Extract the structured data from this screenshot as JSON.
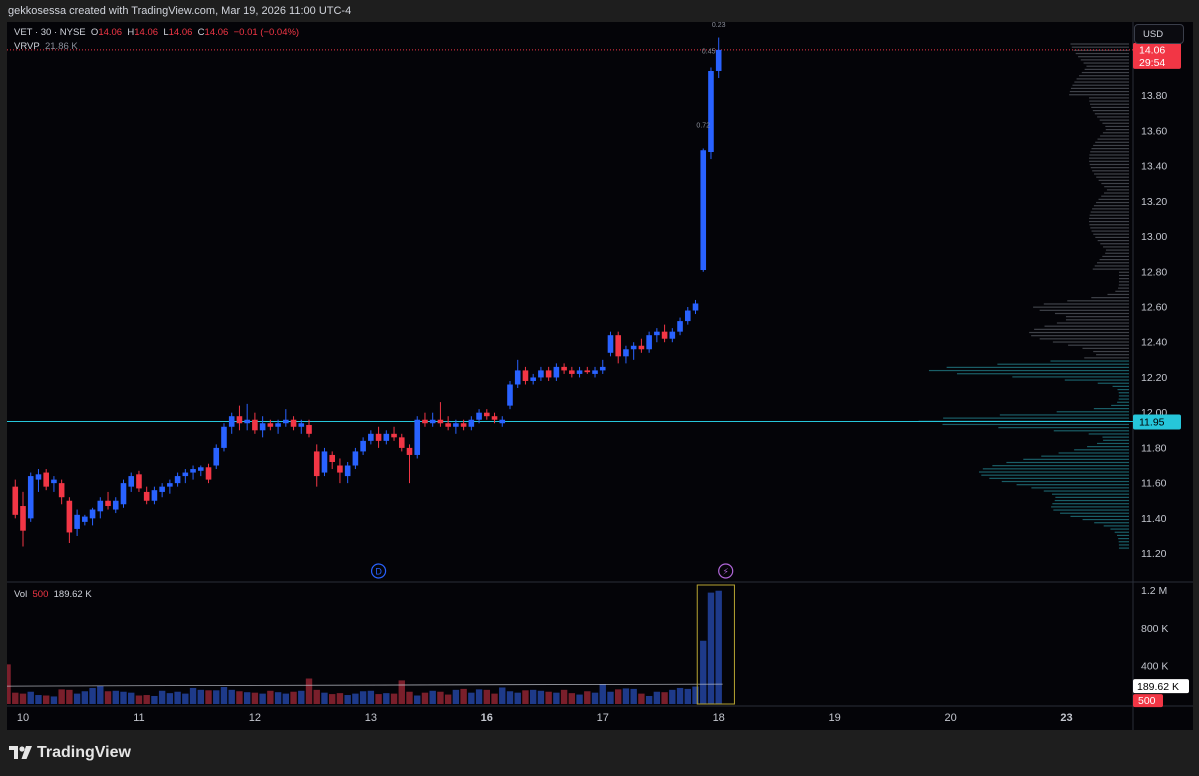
{
  "caption": "gekkosessa created with TradingView.com, Mar 19, 2026 11:00 UTC-4",
  "legend": {
    "symbol": "VET · 30 · NYSE",
    "open_label": "O",
    "open": "14.06",
    "high_label": "H",
    "high": "14.06",
    "low_label": "L",
    "low": "14.06",
    "close_label": "C",
    "close": "14.06",
    "change": "−0.01 (−0.04%)",
    "vrvp_label": "VRVP",
    "vrvp_value": "21.86 K",
    "vol_label": "Vol",
    "vol_ma": "500",
    "vol_value": "189.62 K"
  },
  "currency": "USD",
  "price_badges": {
    "last_price": "14.06",
    "countdown": "29:54",
    "poc_price": "11.95",
    "volume": "189.62 K",
    "volume_ma": "500"
  },
  "event_markers": {
    "dividend": "D",
    "earnings": "⚡"
  },
  "annotations": [
    {
      "price": 14.0,
      "label": "0.23"
    },
    {
      "price": 13.6,
      "label": "0.72"
    },
    {
      "price": 14.04,
      "label": "0.45"
    }
  ],
  "branding": "TradingView",
  "colors": {
    "up": "#2962ff",
    "down": "#f23645",
    "vol_up": "#1e3a8a",
    "vol_down": "#7a1f2b",
    "profile_above": "#4a4d55",
    "profile_below": "#1e6f78",
    "poc": "#26c6da",
    "background": "#040408"
  },
  "chart_data": [
    {
      "type": "candlestick",
      "title": "",
      "x_tick_labels": [
        "10",
        "11",
        "12",
        "13",
        "16",
        "17",
        "18",
        "19",
        "20",
        "23"
      ],
      "x_tick_bar_index": [
        1,
        16,
        31,
        46,
        61,
        76,
        91,
        106,
        121,
        136
      ],
      "y_ticks": [
        11.2,
        11.4,
        11.6,
        11.8,
        12.0,
        12.2,
        12.4,
        12.6,
        12.8,
        13.0,
        13.2,
        13.4,
        13.6,
        13.8
      ],
      "y_tick_labels": [
        "11.20",
        "11.40",
        "11.60",
        "11.80",
        "12.00",
        "12.20",
        "12.40",
        "12.60",
        "12.80",
        "13.00",
        "13.20",
        "13.40",
        "13.60",
        "13.80"
      ],
      "ylim": [
        11.05,
        14.15
      ],
      "last_price": 14.06,
      "poc_price": 11.95,
      "ohlc": [
        [
          11.58,
          11.62,
          11.4,
          11.42
        ],
        [
          11.47,
          11.55,
          11.24,
          11.33
        ],
        [
          11.4,
          11.66,
          11.38,
          11.64
        ],
        [
          11.62,
          11.68,
          11.55,
          11.65
        ],
        [
          11.66,
          11.68,
          11.56,
          11.58
        ],
        [
          11.6,
          11.64,
          11.55,
          11.62
        ],
        [
          11.6,
          11.62,
          11.48,
          11.52
        ],
        [
          11.5,
          11.52,
          11.26,
          11.32
        ],
        [
          11.34,
          11.45,
          11.3,
          11.42
        ],
        [
          11.38,
          11.42,
          11.36,
          11.41
        ],
        [
          11.4,
          11.46,
          11.36,
          11.45
        ],
        [
          11.44,
          11.52,
          11.4,
          11.5
        ],
        [
          11.5,
          11.55,
          11.45,
          11.47
        ],
        [
          11.45,
          11.52,
          11.43,
          11.5
        ],
        [
          11.48,
          11.62,
          11.46,
          11.6
        ],
        [
          11.58,
          11.66,
          11.55,
          11.64
        ],
        [
          11.65,
          11.67,
          11.55,
          11.57
        ],
        [
          11.55,
          11.58,
          11.48,
          11.5
        ],
        [
          11.5,
          11.58,
          11.48,
          11.56
        ],
        [
          11.55,
          11.6,
          11.52,
          11.58
        ],
        [
          11.58,
          11.62,
          11.54,
          11.6
        ],
        [
          11.6,
          11.66,
          11.58,
          11.64
        ],
        [
          11.64,
          11.68,
          11.6,
          11.66
        ],
        [
          11.66,
          11.7,
          11.62,
          11.68
        ],
        [
          11.67,
          11.7,
          11.64,
          11.69
        ],
        [
          11.69,
          11.71,
          11.6,
          11.62
        ],
        [
          11.7,
          11.82,
          11.68,
          11.8
        ],
        [
          11.8,
          11.94,
          11.78,
          11.92
        ],
        [
          11.92,
          12.0,
          11.88,
          11.98
        ],
        [
          11.98,
          12.04,
          11.9,
          11.94
        ],
        [
          11.94,
          12.05,
          11.9,
          11.96
        ],
        [
          11.96,
          12.0,
          11.88,
          11.9
        ],
        [
          11.9,
          11.98,
          11.86,
          11.94
        ],
        [
          11.94,
          11.96,
          11.9,
          11.92
        ],
        [
          11.92,
          11.96,
          11.88,
          11.94
        ],
        [
          11.94,
          12.02,
          11.92,
          11.96
        ],
        [
          11.96,
          11.98,
          11.9,
          11.92
        ],
        [
          11.92,
          11.96,
          11.88,
          11.94
        ],
        [
          11.93,
          11.96,
          11.86,
          11.88
        ],
        [
          11.78,
          11.82,
          11.58,
          11.64
        ],
        [
          11.66,
          11.8,
          11.64,
          11.78
        ],
        [
          11.76,
          11.78,
          11.68,
          11.72
        ],
        [
          11.7,
          11.74,
          11.6,
          11.66
        ],
        [
          11.64,
          11.72,
          11.6,
          11.7
        ],
        [
          11.7,
          11.8,
          11.68,
          11.78
        ],
        [
          11.78,
          11.86,
          11.76,
          11.84
        ],
        [
          11.84,
          11.9,
          11.82,
          11.88
        ],
        [
          11.88,
          11.92,
          11.8,
          11.84
        ],
        [
          11.84,
          11.9,
          11.82,
          11.88
        ],
        [
          11.88,
          11.92,
          11.84,
          11.86
        ],
        [
          11.86,
          11.88,
          11.78,
          11.8
        ],
        [
          11.8,
          11.82,
          11.6,
          11.76
        ],
        [
          11.76,
          11.98,
          11.74,
          11.96
        ],
        [
          11.96,
          12.0,
          11.92,
          11.94
        ],
        [
          11.94,
          12.0,
          11.92,
          11.96
        ],
        [
          11.96,
          12.06,
          11.92,
          11.94
        ],
        [
          11.94,
          11.98,
          11.9,
          11.92
        ],
        [
          11.92,
          11.96,
          11.88,
          11.94
        ],
        [
          11.94,
          11.96,
          11.9,
          11.92
        ],
        [
          11.92,
          11.98,
          11.9,
          11.96
        ],
        [
          11.96,
          12.02,
          11.94,
          12.0
        ],
        [
          12.0,
          12.02,
          11.96,
          11.98
        ],
        [
          11.98,
          12.0,
          11.94,
          11.96
        ],
        [
          11.94,
          11.98,
          11.92,
          11.96
        ],
        [
          12.04,
          12.18,
          12.02,
          12.16
        ],
        [
          12.16,
          12.3,
          12.14,
          12.24
        ],
        [
          12.24,
          12.26,
          12.16,
          12.18
        ],
        [
          12.18,
          12.22,
          12.16,
          12.2
        ],
        [
          12.2,
          12.26,
          12.18,
          12.24
        ],
        [
          12.24,
          12.26,
          12.18,
          12.2
        ],
        [
          12.2,
          12.28,
          12.18,
          12.26
        ],
        [
          12.26,
          12.28,
          12.22,
          12.24
        ],
        [
          12.24,
          12.26,
          12.2,
          12.22
        ],
        [
          12.22,
          12.26,
          12.2,
          12.24
        ],
        [
          12.24,
          12.26,
          12.22,
          12.23
        ],
        [
          12.22,
          12.26,
          12.2,
          12.24
        ],
        [
          12.24,
          12.3,
          12.22,
          12.26
        ],
        [
          12.34,
          12.46,
          12.32,
          12.44
        ],
        [
          12.44,
          12.46,
          12.28,
          12.32
        ],
        [
          12.32,
          12.38,
          12.28,
          12.36
        ],
        [
          12.36,
          12.4,
          12.3,
          12.38
        ],
        [
          12.38,
          12.42,
          12.34,
          12.36
        ],
        [
          12.36,
          12.46,
          12.34,
          12.44
        ],
        [
          12.44,
          12.48,
          12.4,
          12.46
        ],
        [
          12.46,
          12.5,
          12.4,
          12.42
        ],
        [
          12.42,
          12.48,
          12.4,
          12.46
        ],
        [
          12.46,
          12.54,
          12.44,
          12.52
        ],
        [
          12.52,
          12.6,
          12.5,
          12.58
        ],
        [
          12.58,
          12.64,
          12.56,
          12.62
        ],
        [
          12.81,
          13.5,
          12.8,
          13.49
        ],
        [
          13.48,
          13.96,
          13.44,
          13.94
        ],
        [
          13.94,
          14.13,
          13.9,
          14.06
        ]
      ],
      "ohlc_x": "consecutive 30-minute bars; the first bar sits 1 bar before the day-10 tick, the last three bars are the spike on day 19"
    },
    {
      "type": "bar",
      "title": "Vol",
      "y_tick_labels": [
        "400 K",
        "800 K",
        "1.2 M"
      ],
      "y_ticks": [
        400000,
        800000,
        1200000
      ],
      "ylim": [
        0,
        1250000
      ],
      "volume_ma": 189620,
      "values": [
        420,
        120,
        110,
        130,
        95,
        90,
        80,
        155,
        150,
        110,
        135,
        170,
        190,
        135,
        140,
        130,
        120,
        90,
        95,
        85,
        140,
        115,
        130,
        110,
        170,
        150,
        145,
        145,
        180,
        150,
        135,
        125,
        120,
        110,
        140,
        125,
        110,
        130,
        140,
        270,
        150,
        120,
        105,
        115,
        95,
        110,
        135,
        140,
        105,
        115,
        110,
        250,
        130,
        90,
        120,
        140,
        130,
        100,
        150,
        160,
        120,
        155,
        150,
        110,
        175,
        135,
        120,
        145,
        150,
        140,
        130,
        120,
        150,
        115,
        100,
        135,
        120,
        210,
        130,
        155,
        165,
        160,
        110,
        85,
        130,
        125,
        150,
        170,
        160,
        185,
        670,
        1180,
        1200
      ],
      "values_unit": "thousands",
      "highlighted_range": "last 3 bars"
    }
  ]
}
